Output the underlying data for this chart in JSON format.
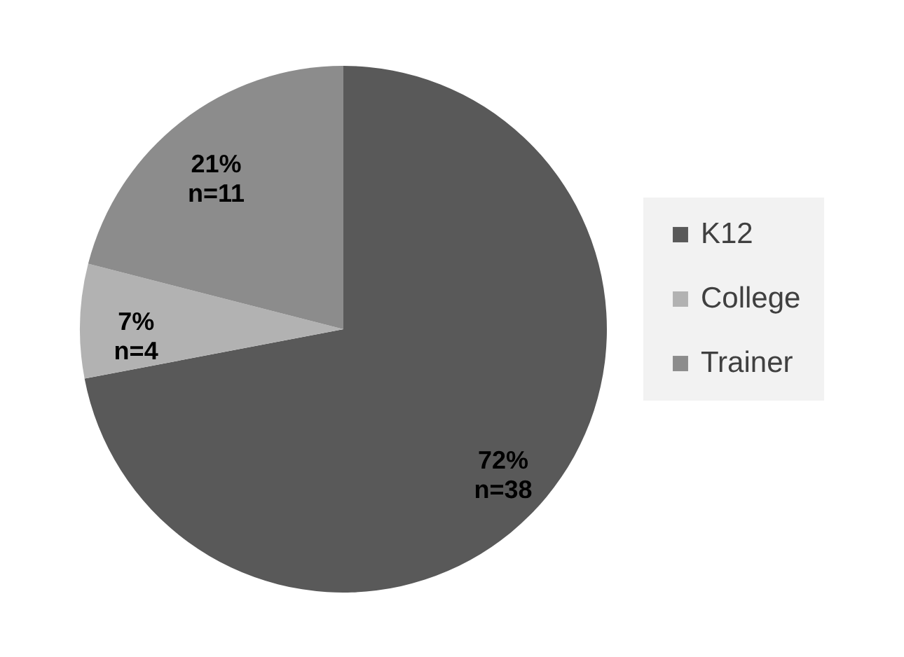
{
  "chart_data": {
    "type": "pie",
    "categories": [
      "K12",
      "College",
      "Trainer"
    ],
    "values": [
      72,
      7,
      21
    ],
    "colors": [
      "#595959",
      "#b2b2b2",
      "#8c8c8c"
    ],
    "value_labels": [
      "72%\nn=38",
      "7%\nn=4",
      "21%\nn=11"
    ],
    "legend": "right"
  }
}
